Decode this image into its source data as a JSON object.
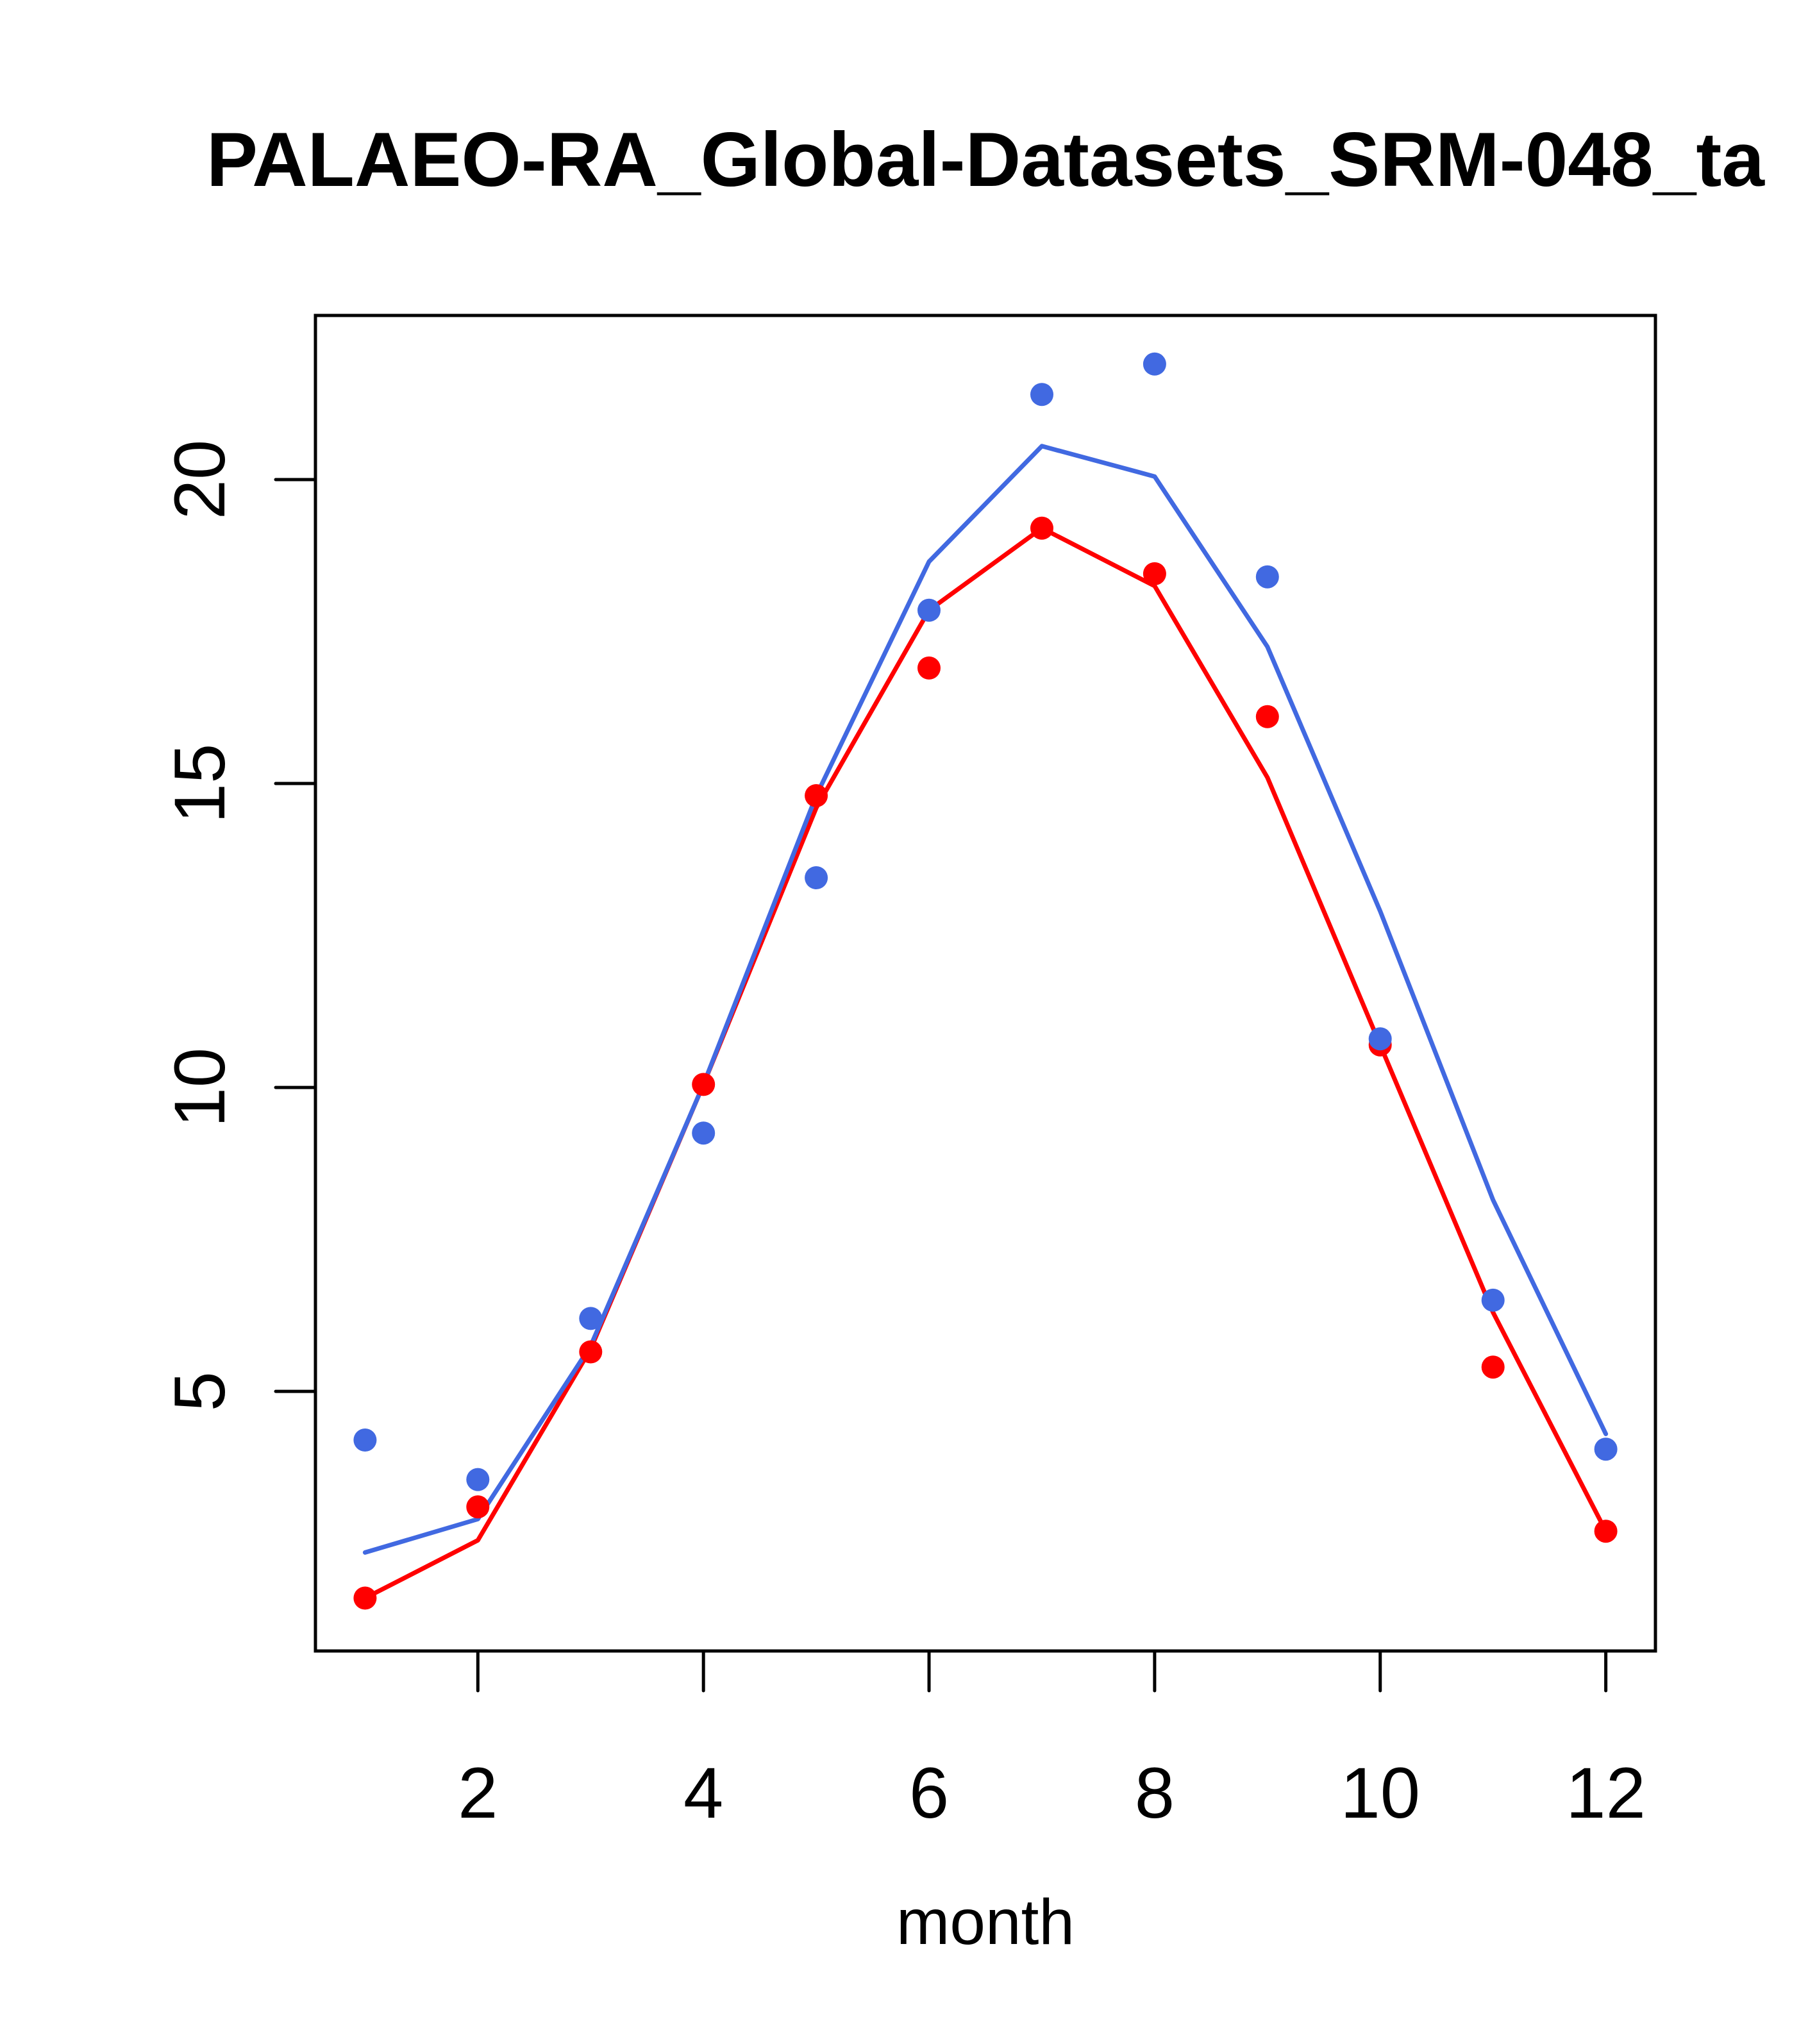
{
  "chart_data": {
    "type": "line",
    "title": "PALAEO-RA_Global-Datasets_SRM-048_ta",
    "xlabel": "month",
    "ylabel": "",
    "xlim": [
      0.56,
      12.44
    ],
    "ylim": [
      0.73,
      22.7
    ],
    "x_ticks": [
      2,
      4,
      6,
      8,
      10,
      12
    ],
    "x_tick_labels": [
      "2",
      "4",
      "6",
      "8",
      "10",
      "12"
    ],
    "y_ticks": [
      5,
      10,
      15,
      20
    ],
    "y_tick_labels": [
      "5",
      "10",
      "15",
      "20"
    ],
    "grid": false,
    "legend": "none",
    "x": [
      1,
      2,
      3,
      4,
      5,
      6,
      7,
      8,
      9,
      10,
      11,
      12
    ],
    "series": [
      {
        "name": "red-points",
        "kind": "points",
        "color": "#ff0000",
        "values": [
          1.6,
          3.1,
          5.65,
          10.05,
          14.8,
          16.9,
          19.2,
          18.45,
          16.1,
          10.7,
          5.4,
          2.7
        ]
      },
      {
        "name": "red-line",
        "kind": "line",
        "color": "#ff0000",
        "values": [
          1.6,
          2.55,
          5.7,
          10.05,
          14.6,
          17.85,
          19.2,
          18.25,
          15.1,
          10.7,
          6.3,
          2.7
        ]
      },
      {
        "name": "blue-points",
        "kind": "points",
        "color": "#4169e1",
        "values": [
          4.2,
          3.55,
          6.2,
          9.25,
          13.45,
          17.85,
          21.4,
          21.9,
          18.4,
          10.8,
          6.5,
          4.05
        ]
      },
      {
        "name": "blue-line",
        "kind": "line",
        "color": "#4169e1",
        "values": [
          2.35,
          2.9,
          5.75,
          10.05,
          14.8,
          18.65,
          20.55,
          20.05,
          17.25,
          12.9,
          8.15,
          4.3
        ]
      }
    ]
  }
}
